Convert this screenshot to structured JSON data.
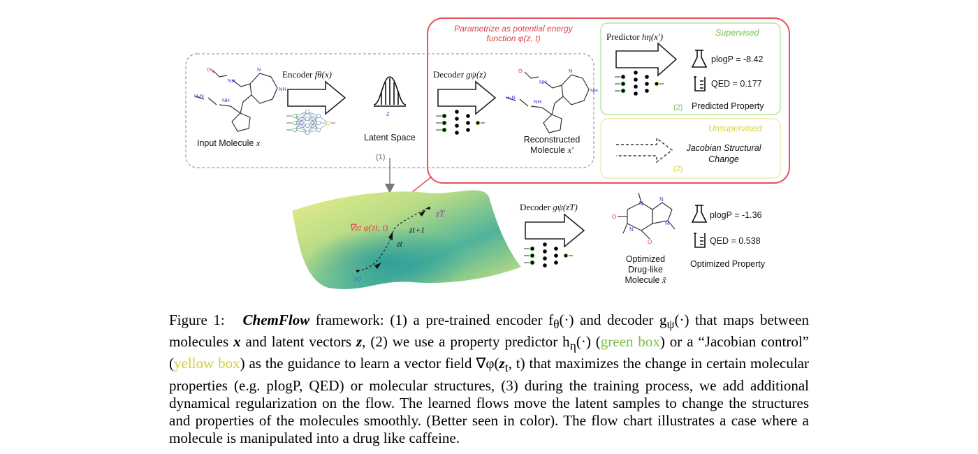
{
  "figure": {
    "parametrize_note_line1": "Parametrize as potential energy",
    "parametrize_note_line2": "function φ(z, t)",
    "encoder_label": "Encoder f_θ(x)",
    "encoder_label_main": "Encoder",
    "encoder_label_math": "fθ(x)",
    "decoder_label_main": "Decoder",
    "decoder_label_math": "gψ(z)",
    "decoder2_label_math": "gψ(zT)",
    "predictor_label_main": "Predictor",
    "predictor_label_math": "hη(x′)",
    "input_molecule_label": "Input Molecule",
    "input_molecule_math": "x",
    "latent_space_label": "Latent Space",
    "latent_z": "z",
    "step1_marker": "(1)",
    "reconstructed_line1": "Reconstructed",
    "reconstructed_line2": "Molecule",
    "reconstructed_math": "x′",
    "supervised_label": "Supervised",
    "unsupervised_label": "Unsupervised",
    "plogp_pred": "plogP = -8.42",
    "qed_pred": "QED = 0.177",
    "step2_marker_a": "(2)",
    "predicted_property": "Predicted Property",
    "jacobian_line1": "Jacobian Structural",
    "jacobian_line2": "Change",
    "step2_marker_b": "(2)",
    "gradient_label": "∇zt φ(zt, t)",
    "z_T": "zT",
    "z_t1": "zt+1",
    "z_t": "zt",
    "z_0": "z0",
    "optimized_line1": "Optimized",
    "optimized_line2": "Drug-like",
    "optimized_line3": "Molecule",
    "optimized_math": "x̃",
    "plogp_opt": "plogP = -1.36",
    "qed_opt": "QED = 0.538",
    "optimized_property": "Optimized Property",
    "atom_labels": {
      "NH": "NH",
      "N": "N",
      "H2N": "H2N",
      "O": "O"
    }
  },
  "caption": {
    "fig_label": "Figure 1:",
    "name": "ChemFlow",
    "part1": " framework: (1) a pre-trained encoder f",
    "part1b": "θ",
    "part1c": "(·) and decoder g",
    "part1d": "ψ",
    "part1e": "(·) that maps between molecules ",
    "x": "x",
    "part2": " and latent vectors ",
    "z": "z",
    "part3": ", (2) we use a property predictor h",
    "part3b": "η",
    "part3c": "(·) (",
    "green_box": "green box",
    "part4": ") or a “Jacobian control” (",
    "yellow_box": "yellow box",
    "part5": ") as the guidance to learn a vector field ∇φ(",
    "zt": "z",
    "part5b": "t",
    "part5c": ", t) that maximizes the change in certain molecular properties (e.g. plogP, QED) or molecular structures, (3) during the training process, we add additional dynamical regularization on the flow. The learned flows move the latent samples to change the structures and properties of the molecules smoothly. (Better seen in color). The flow chart illustrates a case where a molecule is manipulated into a drug like caffeine."
  },
  "colors": {
    "red_box": "#e8525a",
    "green_box": "#a9dc8a",
    "yellow_box": "#eee9a0",
    "gray_dash": "#9a9a9a",
    "molecule_blue": "#3a3ad8",
    "molecule_red": "#e03030"
  }
}
